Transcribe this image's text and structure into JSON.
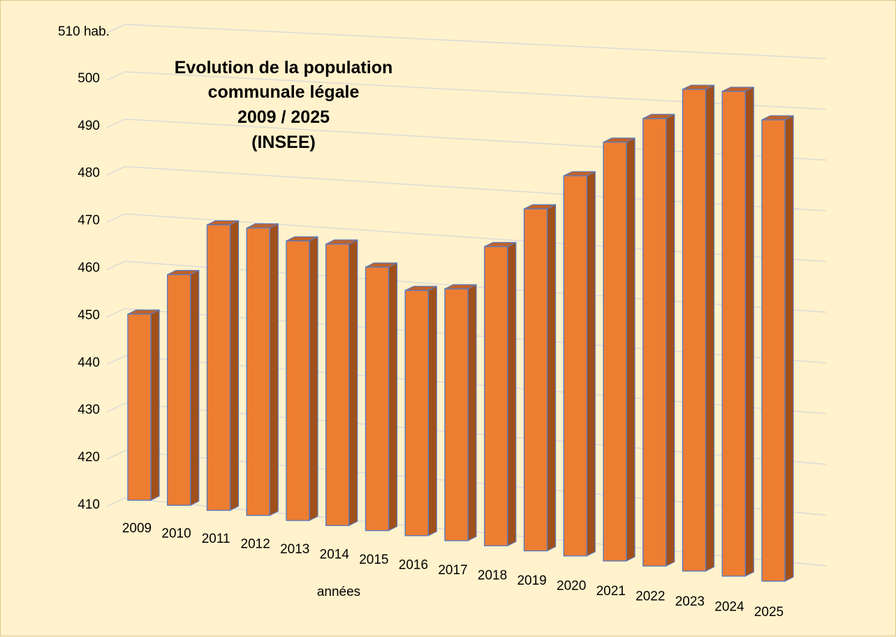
{
  "chart_data": {
    "type": "bar",
    "title_lines": [
      "Evolution de la population",
      "communale légale",
      "2009 / 2025",
      "(INSEE)"
    ],
    "xlabel": "années",
    "ylabel": "",
    "y_unit_label": "510 hab.",
    "ylim": [
      410,
      510
    ],
    "y_ticks": [
      "410",
      "420",
      "430",
      "440",
      "450",
      "460",
      "470",
      "480",
      "490",
      "500"
    ],
    "categories": [
      "2009",
      "2010",
      "2011",
      "2012",
      "2013",
      "2014",
      "2015",
      "2016",
      "2017",
      "2018",
      "2019",
      "2020",
      "2021",
      "2022",
      "2023",
      "2024",
      "2025"
    ],
    "values": [
      449,
      458,
      469,
      469,
      467,
      467,
      463,
      459,
      460,
      469,
      477,
      484,
      491,
      496,
      502,
      502,
      497
    ],
    "grid": true,
    "legend": "none",
    "bar_color": "#ed7d31",
    "bar_side_color": "#a0501a",
    "bar_outline_color": "#5b7bbf",
    "background_color": "#fff2cc"
  }
}
